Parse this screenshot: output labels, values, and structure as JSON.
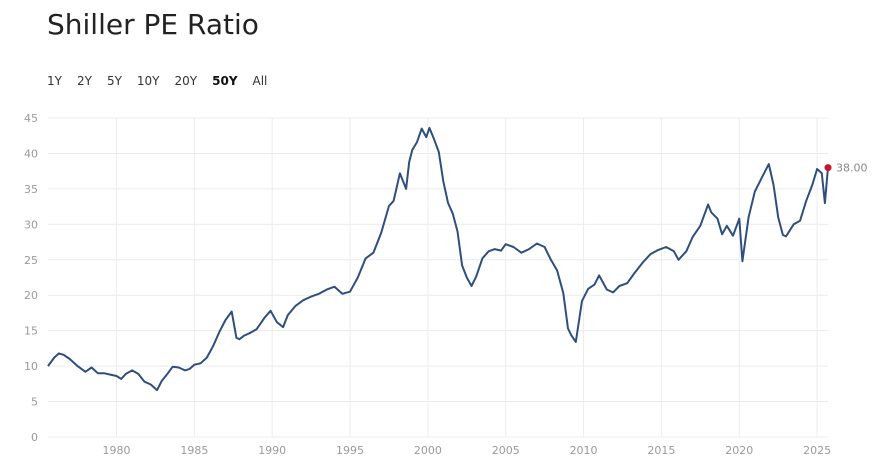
{
  "header": {
    "title": "Shiller PE Ratio"
  },
  "ranges": [
    {
      "label": "1Y",
      "active": false
    },
    {
      "label": "2Y",
      "active": false
    },
    {
      "label": "5Y",
      "active": false
    },
    {
      "label": "10Y",
      "active": false
    },
    {
      "label": "20Y",
      "active": false
    },
    {
      "label": "50Y",
      "active": true
    },
    {
      "label": "All",
      "active": false
    }
  ],
  "colors": {
    "line": "#2e4f7e",
    "marker": "#d0112b",
    "grid": "#ececec"
  },
  "chart_data": {
    "type": "line",
    "title": "Shiller PE Ratio",
    "xlabel": "",
    "ylabel": "",
    "xlim": [
      1975.6,
      2025.7
    ],
    "ylim": [
      0,
      45
    ],
    "x_ticks": [
      1980,
      1985,
      1990,
      1995,
      2000,
      2005,
      2010,
      2015,
      2020,
      2025
    ],
    "y_ticks": [
      0,
      5,
      10,
      15,
      20,
      25,
      30,
      35,
      40,
      45
    ],
    "grid": true,
    "last_value_label": "38.00",
    "series": [
      {
        "x": [
          1975.6,
          1976.0,
          1976.3,
          1976.6,
          1977.0,
          1977.5,
          1978.0,
          1978.4,
          1978.8,
          1979.2,
          1979.6,
          1980.0,
          1980.3,
          1980.6,
          1981.0,
          1981.4,
          1981.8,
          1982.2,
          1982.6,
          1982.9,
          1983.3,
          1983.6,
          1984.0,
          1984.4,
          1984.7,
          1985.0,
          1985.4,
          1985.8,
          1986.2,
          1986.6,
          1987.0,
          1987.4,
          1987.7,
          1987.9,
          1988.2,
          1988.6,
          1989.0,
          1989.5,
          1989.9,
          1990.3,
          1990.7,
          1991.0,
          1991.5,
          1992.0,
          1992.5,
          1993.0,
          1993.5,
          1994.0,
          1994.5,
          1995.0,
          1995.5,
          1996.0,
          1996.5,
          1997.0,
          1997.5,
          1997.8,
          1998.2,
          1998.6,
          1998.8,
          1999.0,
          1999.3,
          1999.6,
          1999.9,
          2000.1,
          2000.4,
          2000.7,
          2001.0,
          2001.3,
          2001.6,
          2001.9,
          2002.2,
          2002.5,
          2002.8,
          2003.1,
          2003.5,
          2003.9,
          2004.3,
          2004.7,
          2005.0,
          2005.5,
          2006.0,
          2006.5,
          2007.0,
          2007.5,
          2007.9,
          2008.3,
          2008.7,
          2009.0,
          2009.2,
          2009.5,
          2009.9,
          2010.3,
          2010.7,
          2011.0,
          2011.5,
          2011.9,
          2012.3,
          2012.8,
          2013.3,
          2013.8,
          2014.3,
          2014.8,
          2015.3,
          2015.8,
          2016.1,
          2016.6,
          2017.0,
          2017.5,
          2018.0,
          2018.2,
          2018.6,
          2018.9,
          2019.2,
          2019.6,
          2020.0,
          2020.2,
          2020.6,
          2021.0,
          2021.5,
          2021.9,
          2022.2,
          2022.5,
          2022.8,
          2023.0,
          2023.5,
          2023.9,
          2024.3,
          2024.7,
          2025.0,
          2025.3,
          2025.5,
          2025.7
        ],
        "values": [
          10,
          11.2,
          11.8,
          11.6,
          11.0,
          10.0,
          9.2,
          9.8,
          9.0,
          9.0,
          8.8,
          8.6,
          8.2,
          8.9,
          9.4,
          8.9,
          7.8,
          7.4,
          6.6,
          7.9,
          9.0,
          9.9,
          9.8,
          9.4,
          9.6,
          10.2,
          10.4,
          11.2,
          12.8,
          14.8,
          16.5,
          17.7,
          14.0,
          13.8,
          14.3,
          14.7,
          15.2,
          16.8,
          17.8,
          16.2,
          15.5,
          17.2,
          18.5,
          19.3,
          19.8,
          20.2,
          20.8,
          21.2,
          20.2,
          20.5,
          22.5,
          25.2,
          26.0,
          28.8,
          32.6,
          33.3,
          37.2,
          35.0,
          38.8,
          40.5,
          41.6,
          43.5,
          42.3,
          43.6,
          42.0,
          40.2,
          36.0,
          33.0,
          31.5,
          29.0,
          24.2,
          22.5,
          21.3,
          22.6,
          25.2,
          26.2,
          26.5,
          26.3,
          27.2,
          26.8,
          26.0,
          26.5,
          27.3,
          26.8,
          25.0,
          23.5,
          20.3,
          15.3,
          14.4,
          13.4,
          19.2,
          20.9,
          21.5,
          22.8,
          20.8,
          20.4,
          21.3,
          21.7,
          23.2,
          24.6,
          25.8,
          26.4,
          26.8,
          26.2,
          25.0,
          26.2,
          28.2,
          29.8,
          32.8,
          31.7,
          30.8,
          28.6,
          29.8,
          28.4,
          30.8,
          24.8,
          31.0,
          34.6,
          36.8,
          38.5,
          35.6,
          31.0,
          28.5,
          28.3,
          30.0,
          30.5,
          33.3,
          35.6,
          37.8,
          37.2,
          33.0,
          38.0
        ]
      }
    ]
  }
}
